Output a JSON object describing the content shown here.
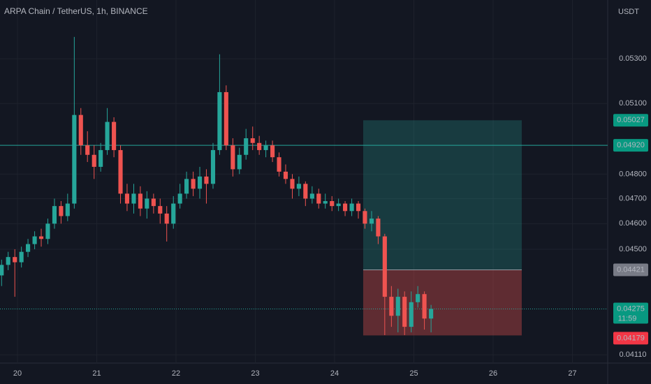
{
  "chart_data": {
    "type": "candlestick",
    "title": "ARPA Chain / TetherUS, 1h, BINANCE",
    "y_axis_label": "USDT",
    "log_scale": true,
    "grid": true,
    "up_color": "#26a69a",
    "down_color": "#ef5350",
    "xlim": [
      19.78,
      27.445
    ],
    "xticks": [
      20,
      21,
      22,
      23,
      24,
      25,
      26,
      27
    ],
    "ylim": [
      0.04081,
      0.05574
    ],
    "yticks": [
      {
        "value": 0.0411,
        "label": "0.04110"
      },
      {
        "value": 0.045,
        "label": "0.04500"
      },
      {
        "value": 0.046,
        "label": "0.04600"
      },
      {
        "value": 0.047,
        "label": "0.04700"
      },
      {
        "value": 0.048,
        "label": "0.04800"
      },
      {
        "value": 0.051,
        "label": "0.05100"
      },
      {
        "value": 0.053,
        "label": "0.05300"
      }
    ],
    "x": [
      19.8,
      19.883,
      19.967,
      20.05,
      20.133,
      20.217,
      20.3,
      20.383,
      20.467,
      20.55,
      20.633,
      20.717,
      20.8,
      20.883,
      20.967,
      21.05,
      21.133,
      21.217,
      21.3,
      21.383,
      21.467,
      21.55,
      21.633,
      21.717,
      21.8,
      21.883,
      21.967,
      22.05,
      22.133,
      22.217,
      22.3,
      22.383,
      22.467,
      22.55,
      22.633,
      22.717,
      22.8,
      22.883,
      22.967,
      23.05,
      23.133,
      23.217,
      23.3,
      23.383,
      23.467,
      23.55,
      23.633,
      23.717,
      23.8,
      23.883,
      23.967,
      24.05,
      24.133,
      24.217,
      24.3,
      24.383,
      24.467,
      24.55,
      24.633,
      24.717,
      24.8,
      24.883,
      24.967,
      25.05,
      25.133,
      25.217
    ],
    "open": [
      0.044,
      0.0444,
      0.0447,
      0.0445,
      0.0449,
      0.0452,
      0.0455,
      0.0454,
      0.046,
      0.0467,
      0.0463,
      0.0468,
      0.0505,
      0.0492,
      0.0488,
      0.0483,
      0.049,
      0.0502,
      0.049,
      0.0472,
      0.0468,
      0.0472,
      0.0466,
      0.047,
      0.0467,
      0.0464,
      0.046,
      0.0468,
      0.0472,
      0.0478,
      0.0474,
      0.0479,
      0.0476,
      0.049,
      0.0515,
      0.0492,
      0.0482,
      0.0488,
      0.0495,
      0.0493,
      0.049,
      0.0492,
      0.0487,
      0.0481,
      0.0478,
      0.0474,
      0.0476,
      0.047,
      0.0472,
      0.0468,
      0.0469,
      0.0467,
      0.0468,
      0.0465,
      0.0468,
      0.0465,
      0.046,
      0.0462,
      0.0455,
      0.0432,
      0.0425,
      0.0432,
      0.0421,
      0.043,
      0.0433,
      0.0424
    ],
    "high": [
      0.0446,
      0.0449,
      0.045,
      0.0451,
      0.0454,
      0.0457,
      0.0458,
      0.0462,
      0.047,
      0.0469,
      0.0472,
      0.054,
      0.0508,
      0.0498,
      0.0492,
      0.0493,
      0.0508,
      0.0504,
      0.0492,
      0.0476,
      0.0476,
      0.0475,
      0.0473,
      0.0472,
      0.047,
      0.0467,
      0.0471,
      0.0476,
      0.0481,
      0.0481,
      0.0483,
      0.0482,
      0.0493,
      0.0532,
      0.0518,
      0.0495,
      0.0491,
      0.0499,
      0.05,
      0.0496,
      0.0494,
      0.0494,
      0.0489,
      0.0484,
      0.048,
      0.0479,
      0.0477,
      0.0475,
      0.0474,
      0.0472,
      0.0471,
      0.047,
      0.0469,
      0.047,
      0.0469,
      0.0466,
      0.0465,
      0.0463,
      0.0456,
      0.0436,
      0.0435,
      0.0434,
      0.0434,
      0.0436,
      0.0434,
      0.0429
    ],
    "low": [
      0.0436,
      0.0442,
      0.0432,
      0.0443,
      0.0447,
      0.045,
      0.0451,
      0.0452,
      0.0458,
      0.046,
      0.0461,
      0.0466,
      0.0488,
      0.0485,
      0.0478,
      0.0481,
      0.0488,
      0.0487,
      0.0468,
      0.0465,
      0.0464,
      0.0463,
      0.0462,
      0.0464,
      0.046,
      0.0453,
      0.0458,
      0.0466,
      0.047,
      0.0471,
      0.047,
      0.0468,
      0.0474,
      0.0488,
      0.049,
      0.0479,
      0.048,
      0.0486,
      0.049,
      0.0488,
      0.0487,
      0.0485,
      0.0479,
      0.0476,
      0.047,
      0.0471,
      0.0467,
      0.0468,
      0.0466,
      0.0466,
      0.0465,
      0.0465,
      0.0463,
      0.0463,
      0.0462,
      0.0458,
      0.0457,
      0.0452,
      0.0418,
      0.0421,
      0.0419,
      0.0418,
      0.0419,
      0.0428,
      0.042,
      0.0419
    ],
    "close": [
      0.0444,
      0.0447,
      0.0445,
      0.0449,
      0.0452,
      0.0455,
      0.0454,
      0.046,
      0.0467,
      0.0463,
      0.0468,
      0.0505,
      0.0492,
      0.0488,
      0.0483,
      0.049,
      0.0502,
      0.049,
      0.0472,
      0.0468,
      0.0472,
      0.0466,
      0.047,
      0.0467,
      0.0464,
      0.046,
      0.0468,
      0.0472,
      0.0478,
      0.0474,
      0.0479,
      0.0476,
      0.049,
      0.0515,
      0.0492,
      0.0482,
      0.0488,
      0.0495,
      0.0493,
      0.049,
      0.0492,
      0.0487,
      0.0481,
      0.0478,
      0.0474,
      0.0476,
      0.047,
      0.0472,
      0.0468,
      0.0469,
      0.0467,
      0.0468,
      0.0465,
      0.0468,
      0.0465,
      0.046,
      0.0462,
      0.0455,
      0.0432,
      0.0425,
      0.0432,
      0.0421,
      0.043,
      0.0433,
      0.0424,
      0.04275
    ],
    "position": {
      "x_start": 24.361,
      "x_end": 26.361,
      "target": {
        "value": 0.05027,
        "label": "0.05027"
      },
      "entry": {
        "value": 0.04421,
        "label": "0.04421"
      },
      "stop": {
        "value": 0.04179,
        "label": "0.04179"
      }
    },
    "horizontal_line": {
      "value": 0.0492,
      "label": "0.04920",
      "color": "#26a69a"
    },
    "last_price": {
      "value": 0.04275,
      "label": "0.04275",
      "countdown": "11:59"
    }
  }
}
